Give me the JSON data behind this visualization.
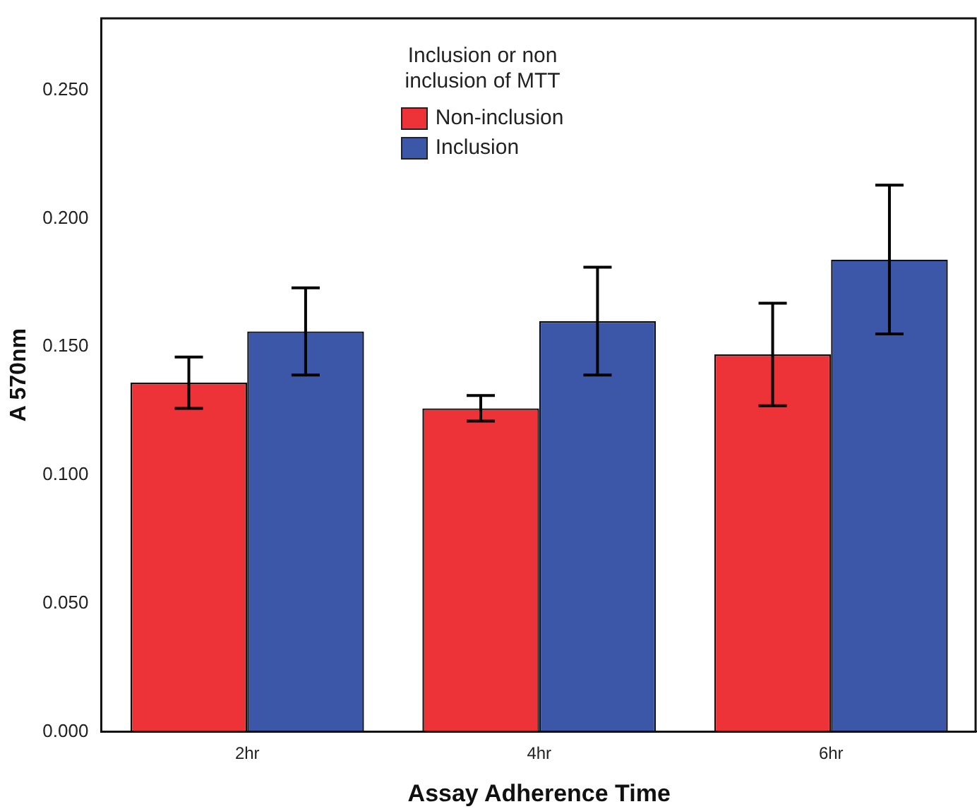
{
  "chart_data": {
    "type": "bar",
    "xlabel": "Assay Adherence Time",
    "ylabel": "A 570nm",
    "legend_title": "Inclusion or non inclusion of MTT",
    "categories": [
      "2hr",
      "4hr",
      "6hr"
    ],
    "series": [
      {
        "name": "Non-inclusion",
        "color": "#ee3338",
        "values": [
          0.136,
          0.126,
          0.147
        ],
        "errors": [
          0.01,
          0.005,
          0.02
        ]
      },
      {
        "name": "Inclusion",
        "color": "#3c56a8",
        "values": [
          0.156,
          0.16,
          0.184
        ],
        "errors": [
          0.017,
          0.021,
          0.029
        ]
      }
    ],
    "ylim": [
      0,
      0.278
    ],
    "yticks": [
      {
        "value": 0,
        "label": "0.000"
      },
      {
        "value": 0.05,
        "label": "0.050"
      },
      {
        "value": 0.1,
        "label": "0.100"
      },
      {
        "value": 0.15,
        "label": "0.150"
      },
      {
        "value": 0.2,
        "label": "0.200"
      },
      {
        "value": 0.25,
        "label": "0.250"
      }
    ],
    "grid": false,
    "legend": "top"
  }
}
